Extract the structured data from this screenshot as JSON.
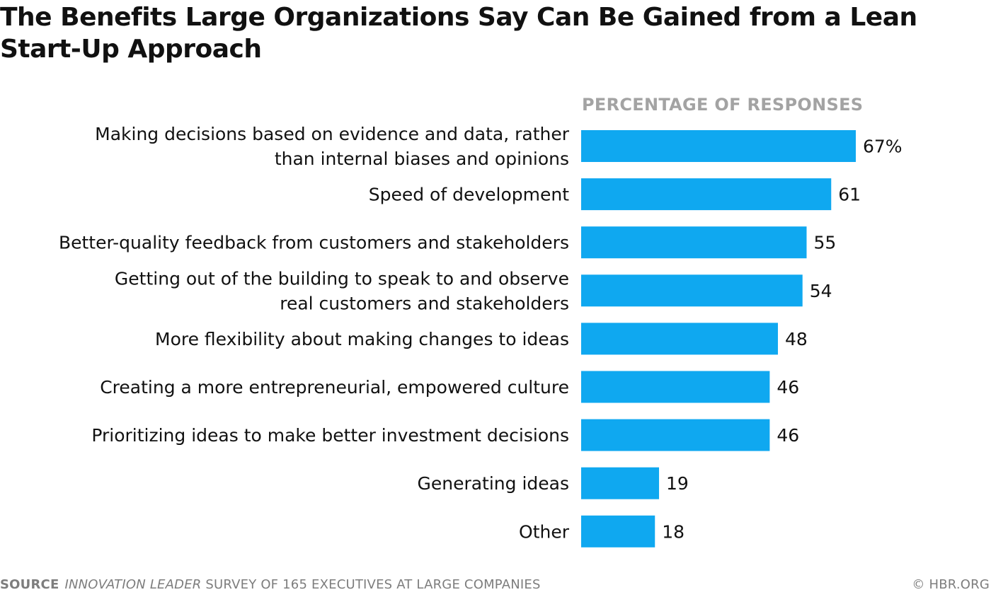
{
  "chart_data": {
    "type": "bar",
    "orientation": "horizontal",
    "title": "The Benefits Large Organizations Say Can Be Gained from a Lean Start-Up Approach",
    "axis_caption": "PERCENTAGE OF RESPONSES",
    "categories": [
      [
        "Making decisions based on evidence and data, rather",
        "than internal biases and opinions"
      ],
      [
        "Speed of development"
      ],
      [
        "Better-quality feedback from customers and stakeholders"
      ],
      [
        "Getting out of the building to speak to and observe",
        "real customers and stakeholders"
      ],
      [
        "More flexibility about making changes to ideas"
      ],
      [
        "Creating a more entrepreneurial, empowered culture"
      ],
      [
        "Prioritizing ideas to make better investment decisions"
      ],
      [
        "Generating ideas"
      ],
      [
        "Other"
      ]
    ],
    "values": [
      67,
      61,
      55,
      54,
      48,
      46,
      46,
      19,
      18
    ],
    "value_labels": [
      "67%",
      "61",
      "55",
      "54",
      "48",
      "46",
      "46",
      "19",
      "18"
    ],
    "bar_color": "#0fa8f0",
    "xlim": [
      0,
      67
    ],
    "grid": false,
    "legend": "none"
  },
  "footer": {
    "source_label": "SOURCE",
    "source_italic": "INNOVATION LEADER",
    "source_rest": " SURVEY OF 165 EXECUTIVES AT LARGE COMPANIES",
    "copyright": "© HBR.ORG"
  }
}
